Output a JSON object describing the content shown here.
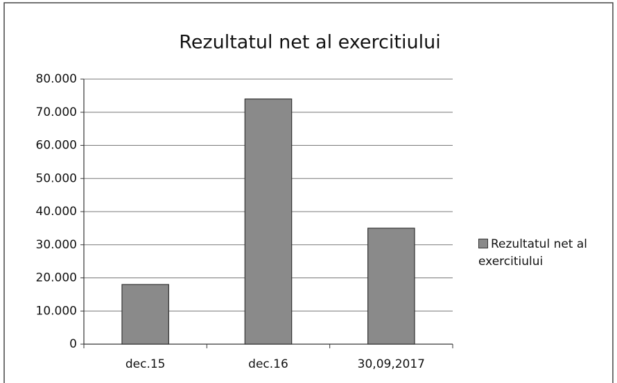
{
  "chart_data": {
    "type": "bar",
    "title": "Rezultatul net al exercitiului",
    "categories": [
      "dec.15",
      "dec.16",
      "30,09,2017"
    ],
    "series": [
      {
        "name": "Rezultatul net al exercitiului",
        "color": "#8a8a8a",
        "values": [
          18000,
          74000,
          35000
        ]
      }
    ],
    "ylim": [
      0,
      80000
    ],
    "yticks": [
      0,
      {
        "value": 10000,
        "label": "10.000"
      },
      {
        "value": 20000,
        "label": "20.000"
      },
      {
        "value": 30000,
        "label": "30.000"
      },
      {
        "value": 40000,
        "label": "40.000"
      },
      {
        "value": 50000,
        "label": "50.000"
      },
      {
        "value": 60000,
        "label": "60.000"
      },
      {
        "value": 70000,
        "label": "70.000"
      },
      {
        "value": 80000,
        "label": "80.000"
      }
    ],
    "grid": true,
    "legend": "right"
  }
}
